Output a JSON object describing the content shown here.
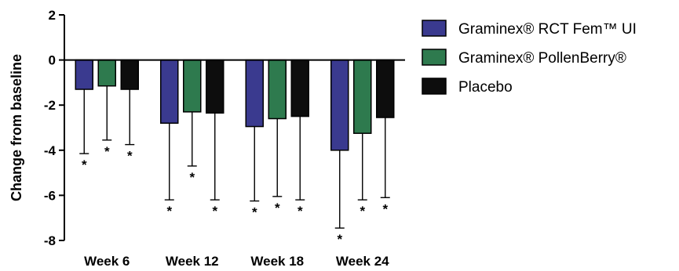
{
  "chart_data": {
    "type": "bar",
    "title": "",
    "xlabel": "",
    "ylabel": "Change from baseline",
    "ylim": [
      -8,
      2
    ],
    "yticks": [
      2,
      0,
      -2,
      -4,
      -6,
      -8
    ],
    "grid": false,
    "legend_position": "right",
    "categories": [
      "Week 6",
      "Week 12",
      "Week 18",
      "Week 24"
    ],
    "series": [
      {
        "name": "Graminex® RCT Fem™ UI",
        "color": "#3a3a8f",
        "values": [
          -1.3,
          -2.8,
          -2.95,
          -4.0
        ],
        "error_low": [
          -4.15,
          -6.2,
          -6.25,
          -7.45
        ],
        "significance": [
          "*",
          "*",
          "*",
          "*"
        ]
      },
      {
        "name": "Graminex® PollenBerry®",
        "color": "#2e7a4e",
        "values": [
          -1.15,
          -2.3,
          -2.6,
          -3.25
        ],
        "error_low": [
          -3.55,
          -4.7,
          -6.05,
          -6.2
        ],
        "significance": [
          "*",
          "*",
          "*",
          "*"
        ]
      },
      {
        "name": "Placebo",
        "color": "#0d0d0d",
        "values": [
          -1.3,
          -2.35,
          -2.5,
          -2.55
        ],
        "error_low": [
          -3.75,
          -6.2,
          -6.2,
          -6.1
        ],
        "significance": [
          "*",
          "*",
          "*",
          "*"
        ]
      }
    ]
  }
}
